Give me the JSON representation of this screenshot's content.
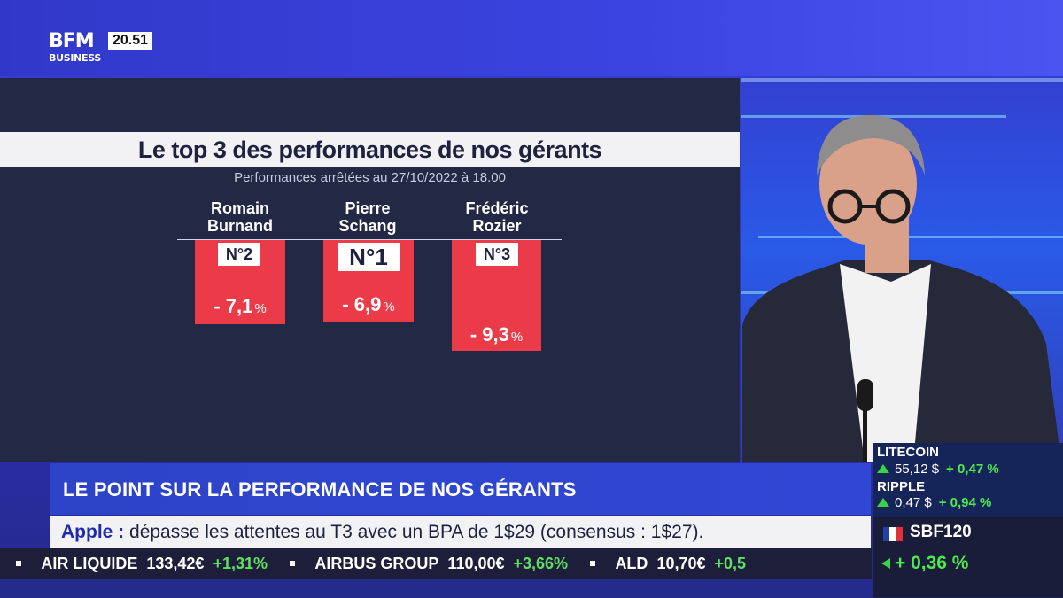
{
  "header": {
    "logo_line1": "BFM",
    "logo_line2": "BUSINESS",
    "clock": "20.51"
  },
  "graphic": {
    "title": "Le top 3 des performances de nos gérants",
    "subtitle": "Performances arrêtées au 27/10/2022 à 18.00",
    "managers": [
      {
        "first_name": "Romain",
        "last_name": "Burnand",
        "rank": "N°2",
        "perf": "- 7,1",
        "unit": "%"
      },
      {
        "first_name": "Pierre",
        "last_name": "Schang",
        "rank": "N°1",
        "perf": "- 6,9",
        "unit": "%"
      },
      {
        "first_name": "Frédéric",
        "last_name": "Rozier",
        "rank": "N°3",
        "perf": "- 9,3",
        "unit": "%"
      }
    ],
    "bar_color": "#ec3b48"
  },
  "lower_third": {
    "title": "LE POINT SUR LA PERFORMANCE DE NOS GÉRANTS"
  },
  "news": {
    "company": "Apple :",
    "text": "dépasse les attentes au T3 avec un BPA de 1$29 (consensus : 1$27)."
  },
  "ticker": [
    {
      "name": "AIR LIQUIDE",
      "price": "133,42€",
      "change": "+1,31%"
    },
    {
      "name": "AIRBUS GROUP",
      "price": "110,00€",
      "change": "+3,66%"
    },
    {
      "name": "ALD",
      "price": "10,70€",
      "change": "+0,5"
    }
  ],
  "market": {
    "crypto": [
      {
        "name": "LITECOIN",
        "price": "55,12 $",
        "change": "+ 0,47 %"
      },
      {
        "name": "RIPPLE",
        "price": "0,47 $",
        "change": "+ 0,94 %"
      }
    ],
    "index": {
      "name": "SBF120",
      "change": "+ 0,36 %"
    },
    "up_color": "#4ee84f"
  }
}
